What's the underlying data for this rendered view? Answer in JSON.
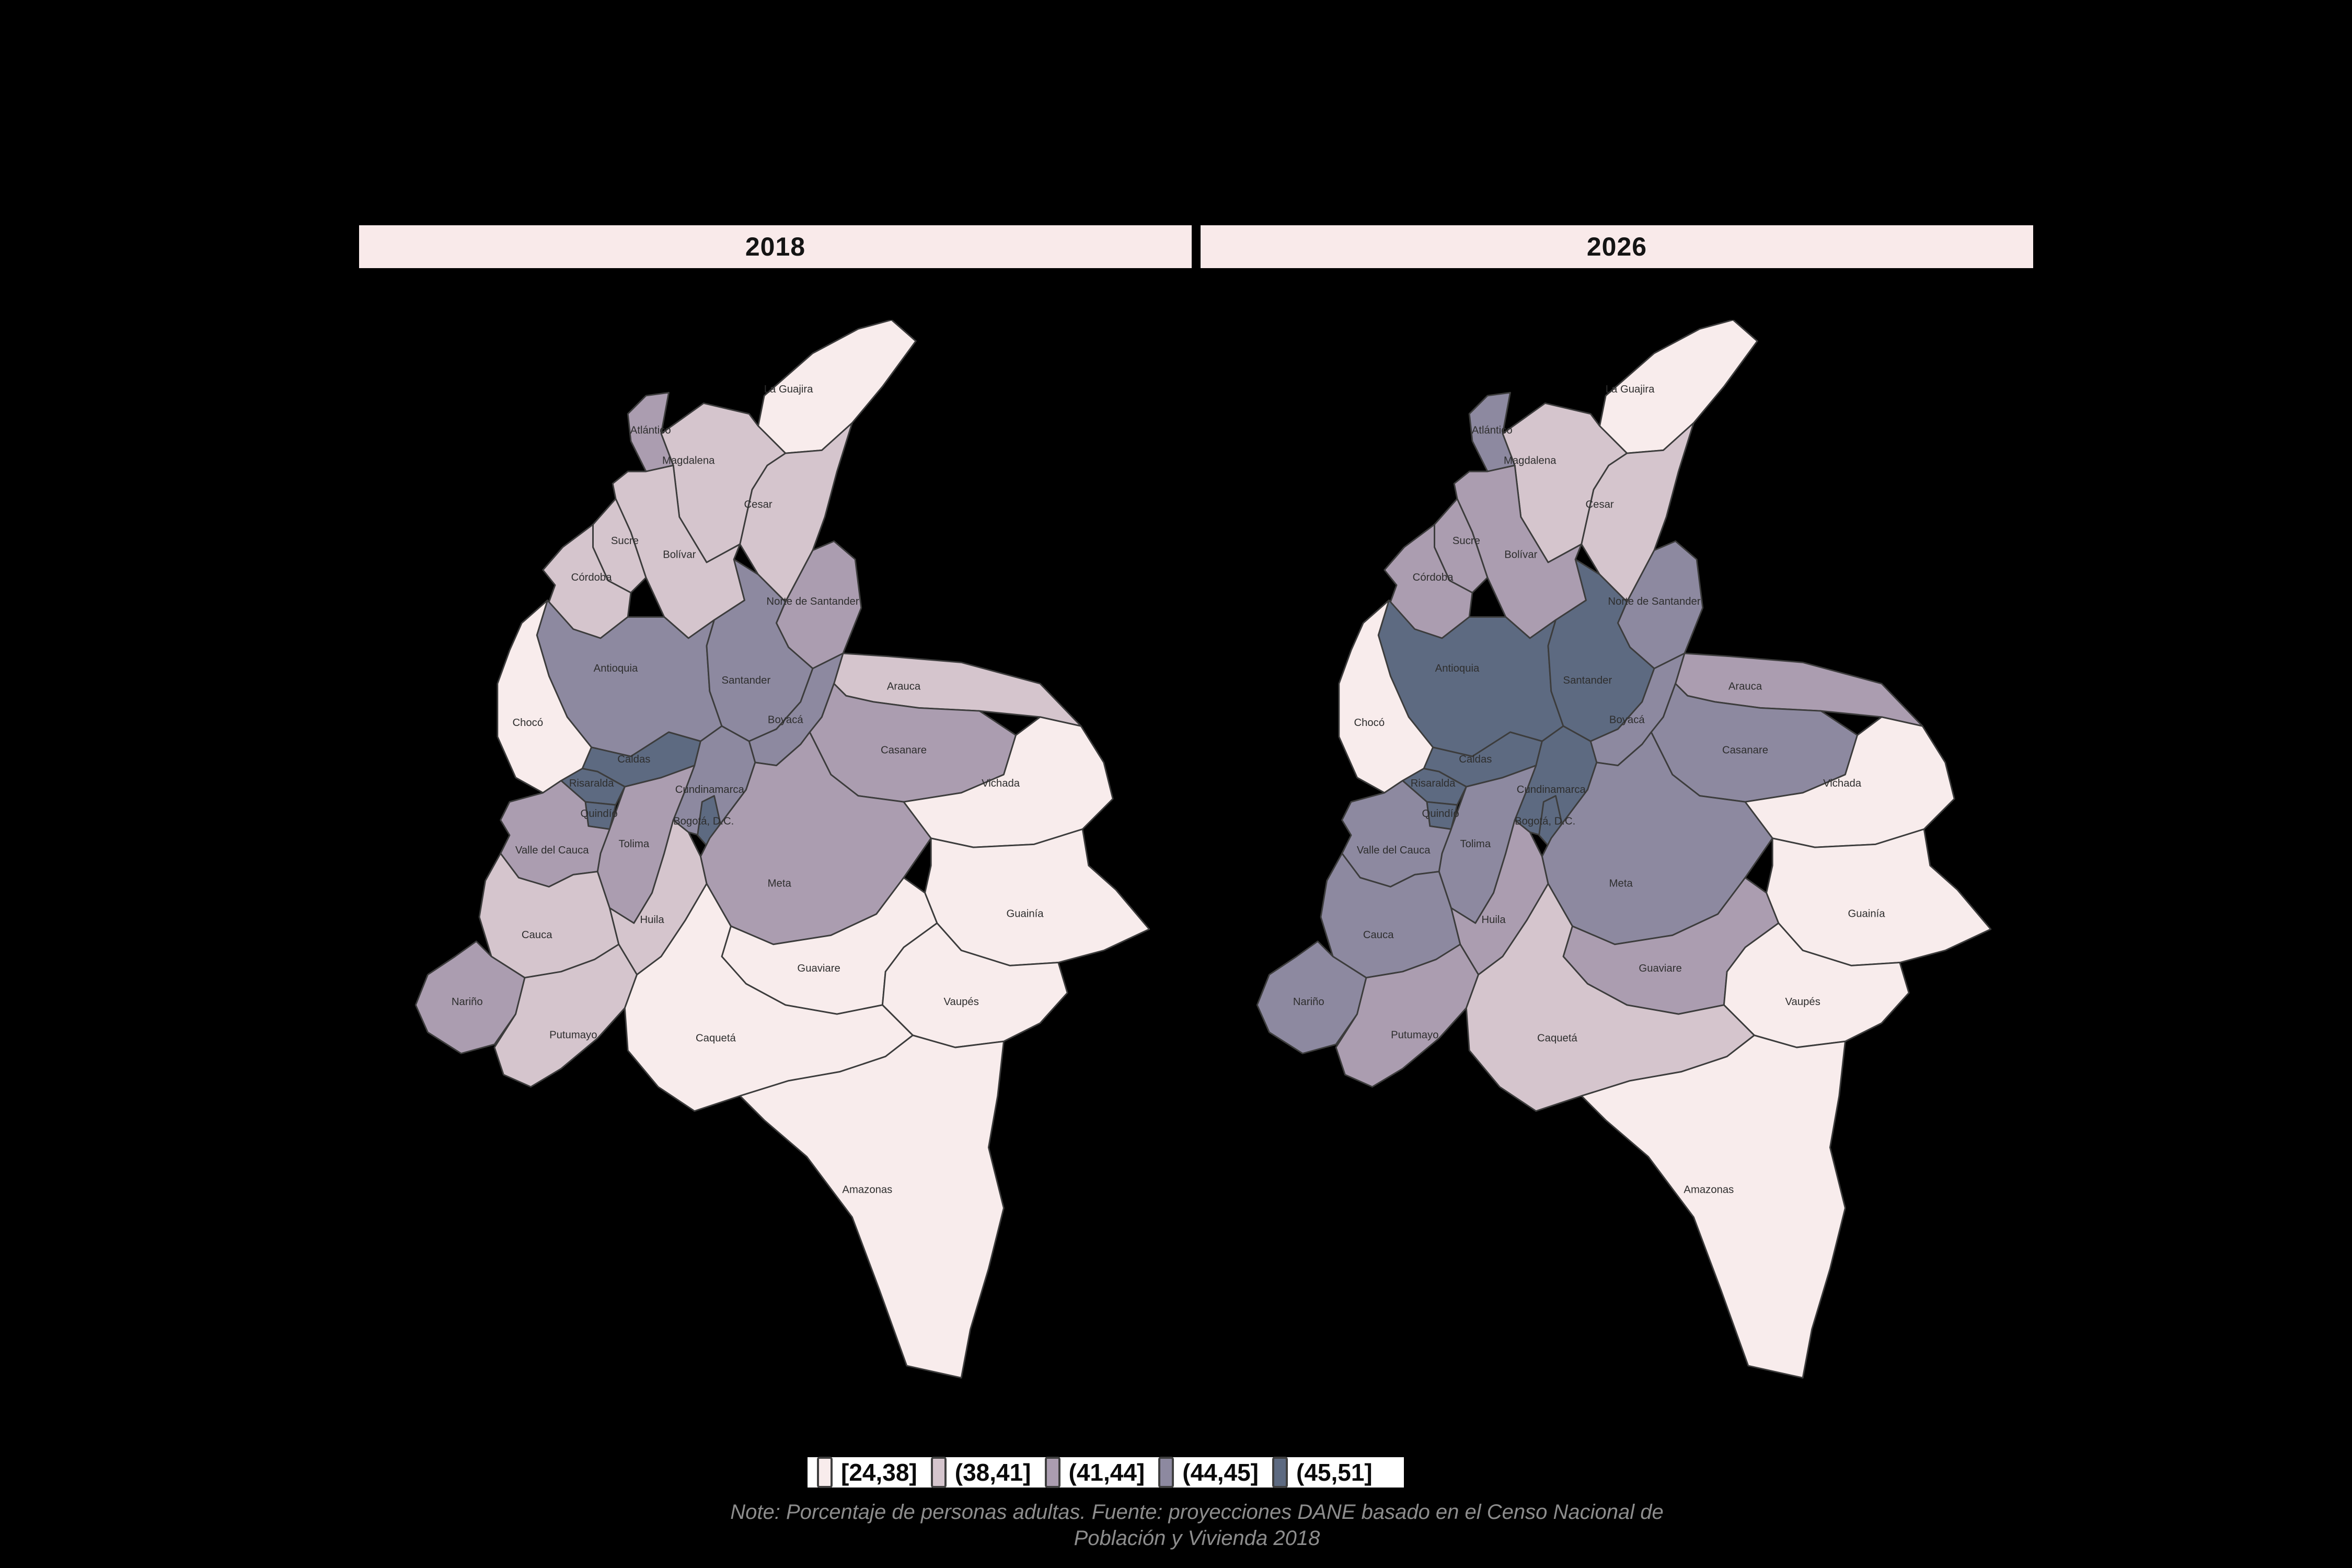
{
  "facets": [
    {
      "label": "2018"
    },
    {
      "label": "2026"
    }
  ],
  "header": {
    "background": "#f9eaea",
    "text_color": "#141414"
  },
  "canvas": {
    "background": "#000000",
    "border_color": "#3c3c3c"
  },
  "legend": {
    "items": [
      {
        "label": "[24,38]",
        "color": "#f8ecec"
      },
      {
        "label": "(38,41]",
        "color": "#d5c5cd"
      },
      {
        "label": "(41,44]",
        "color": "#ab9db0"
      },
      {
        "label": "(44,45]",
        "color": "#8d89a0"
      },
      {
        "label": "(45,51]",
        "color": "#5d6a81"
      }
    ]
  },
  "note": {
    "line1": "Note: Porcentaje de personas adultas. Fuente: proyecciones DANE basado en el Censo Nacional de",
    "line2": "Población y Vivienda 2018"
  },
  "chart_data": {
    "type": "choropleth",
    "geography": "Colombia, departamentos",
    "measure": "Porcentaje de personas adultas",
    "facet_years": [
      "2018",
      "2026"
    ],
    "bins": [
      "[24,38]",
      "(38,41]",
      "(41,44]",
      "(44,45]",
      "(45,51]"
    ],
    "bin_colors": [
      "#f8ecec",
      "#d5c5cd",
      "#ab9db0",
      "#8d89a0",
      "#5d6a81"
    ],
    "departments": [
      {
        "id": "laguajira",
        "name": "La Guajira",
        "bin_2018": "[24,38]",
        "bin_2026": "[24,38]",
        "class_2018": 1,
        "class_2026": 1
      },
      {
        "id": "atlantico",
        "name": "Atlántico",
        "bin_2018": "(41,44]",
        "bin_2026": "(44,45]",
        "class_2018": 3,
        "class_2026": 4
      },
      {
        "id": "magdalena",
        "name": "Magdalena",
        "bin_2018": "(38,41]",
        "bin_2026": "(38,41]",
        "class_2018": 2,
        "class_2026": 2
      },
      {
        "id": "cesar",
        "name": "Cesar",
        "bin_2018": "(38,41]",
        "bin_2026": "(38,41]",
        "class_2018": 2,
        "class_2026": 2
      },
      {
        "id": "sucre",
        "name": "Sucre",
        "bin_2018": "(38,41]",
        "bin_2026": "(41,44]",
        "class_2018": 2,
        "class_2026": 3
      },
      {
        "id": "bolivar",
        "name": "Bolívar",
        "bin_2018": "(38,41]",
        "bin_2026": "(41,44]",
        "class_2018": 2,
        "class_2026": 3
      },
      {
        "id": "cordoba",
        "name": "Córdoba",
        "bin_2018": "(38,41]",
        "bin_2026": "(41,44]",
        "class_2018": 2,
        "class_2026": 3
      },
      {
        "id": "nortesantander",
        "name": "Norte de Santander",
        "bin_2018": "(41,44]",
        "bin_2026": "(44,45]",
        "class_2018": 3,
        "class_2026": 4
      },
      {
        "id": "antioquia",
        "name": "Antioquia",
        "bin_2018": "(44,45]",
        "bin_2026": "(45,51]",
        "class_2018": 4,
        "class_2026": 5
      },
      {
        "id": "santander",
        "name": "Santander",
        "bin_2018": "(44,45]",
        "bin_2026": "(45,51]",
        "class_2018": 4,
        "class_2026": 5
      },
      {
        "id": "arauca",
        "name": "Arauca",
        "bin_2018": "(38,41]",
        "bin_2026": "(41,44]",
        "class_2018": 2,
        "class_2026": 3
      },
      {
        "id": "boyaca",
        "name": "Boyacá",
        "bin_2018": "(44,45]",
        "bin_2026": "(44,45]",
        "class_2018": 4,
        "class_2026": 4
      },
      {
        "id": "casanare",
        "name": "Casanare",
        "bin_2018": "(41,44]",
        "bin_2026": "(44,45]",
        "class_2018": 3,
        "class_2026": 4
      },
      {
        "id": "vichada",
        "name": "Vichada",
        "bin_2018": "[24,38]",
        "bin_2026": "[24,38]",
        "class_2018": 1,
        "class_2026": 1
      },
      {
        "id": "choco",
        "name": "Chocó",
        "bin_2018": "[24,38]",
        "bin_2026": "[24,38]",
        "class_2018": 1,
        "class_2026": 1
      },
      {
        "id": "caldas",
        "name": "Caldas",
        "bin_2018": "(45,51]",
        "bin_2026": "(45,51]",
        "class_2018": 5,
        "class_2026": 5
      },
      {
        "id": "risaralda",
        "name": "Risaralda",
        "bin_2018": "(45,51]",
        "bin_2026": "(45,51]",
        "class_2018": 5,
        "class_2026": 5
      },
      {
        "id": "quindio",
        "name": "Quindío",
        "bin_2018": "(45,51]",
        "bin_2026": "(45,51]",
        "class_2018": 5,
        "class_2026": 5
      },
      {
        "id": "cundinamarca",
        "name": "Cundinamarca",
        "bin_2018": "(44,45]",
        "bin_2026": "(45,51]",
        "class_2018": 4,
        "class_2026": 5
      },
      {
        "id": "bogota",
        "name": "Bogotá, D.C.",
        "bin_2018": "(45,51]",
        "bin_2026": "(45,51]",
        "class_2018": 5,
        "class_2026": 5
      },
      {
        "id": "tolima",
        "name": "Tolima",
        "bin_2018": "(41,44]",
        "bin_2026": "(44,45]",
        "class_2018": 3,
        "class_2026": 4
      },
      {
        "id": "valledelcauca",
        "name": "Valle del Cauca",
        "bin_2018": "(41,44]",
        "bin_2026": "(44,45]",
        "class_2018": 3,
        "class_2026": 4
      },
      {
        "id": "meta",
        "name": "Meta",
        "bin_2018": "(41,44]",
        "bin_2026": "(44,45]",
        "class_2018": 3,
        "class_2026": 4
      },
      {
        "id": "guainia",
        "name": "Guainía",
        "bin_2018": "[24,38]",
        "bin_2026": "[24,38]",
        "class_2018": 1,
        "class_2026": 1
      },
      {
        "id": "huila",
        "name": "Huila",
        "bin_2018": "(38,41]",
        "bin_2026": "(41,44]",
        "class_2018": 2,
        "class_2026": 3
      },
      {
        "id": "cauca",
        "name": "Cauca",
        "bin_2018": "(38,41]",
        "bin_2026": "(44,45]",
        "class_2018": 2,
        "class_2026": 4
      },
      {
        "id": "guaviare",
        "name": "Guaviare",
        "bin_2018": "[24,38]",
        "bin_2026": "(41,44]",
        "class_2018": 1,
        "class_2026": 3
      },
      {
        "id": "narino",
        "name": "Nariño",
        "bin_2018": "(41,44]",
        "bin_2026": "(44,45]",
        "class_2018": 3,
        "class_2026": 4
      },
      {
        "id": "vaupes",
        "name": "Vaupés",
        "bin_2018": "[24,38]",
        "bin_2026": "[24,38]",
        "class_2018": 1,
        "class_2026": 1
      },
      {
        "id": "putumayo",
        "name": "Putumayo",
        "bin_2018": "(38,41]",
        "bin_2026": "(41,44]",
        "class_2018": 2,
        "class_2026": 3
      },
      {
        "id": "caqueta",
        "name": "Caquetá",
        "bin_2018": "[24,38]",
        "bin_2026": "(38,41]",
        "class_2018": 1,
        "class_2026": 2
      },
      {
        "id": "amazonas",
        "name": "Amazonas",
        "bin_2018": "[24,38]",
        "bin_2026": "[24,38]",
        "class_2018": 1,
        "class_2026": 1
      }
    ]
  }
}
